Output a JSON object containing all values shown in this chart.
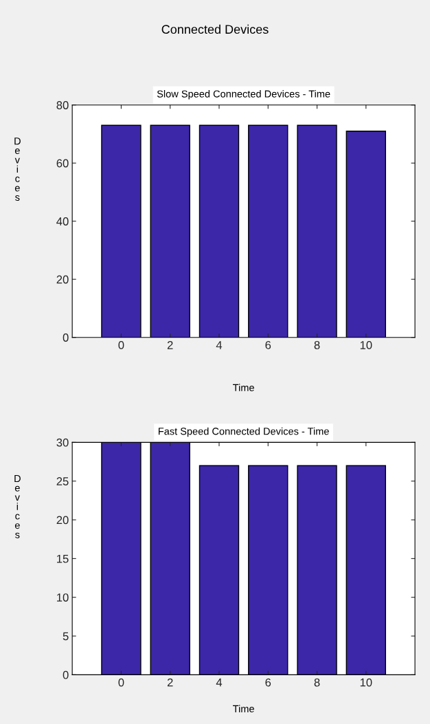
{
  "chart_data": [
    {
      "type": "bar",
      "title": "Slow Speed Connected Devices - Time",
      "xlabel": "Time",
      "ylabel": "Devices",
      "x": [
        0,
        2,
        4,
        6,
        8,
        10
      ],
      "values": [
        73,
        73,
        73,
        73,
        73,
        71
      ],
      "color": "#3c27a8",
      "xlim": [
        -2,
        12
      ],
      "xticks": [
        0,
        2,
        4,
        6,
        8,
        10
      ],
      "ylim": [
        0,
        80
      ],
      "yticks": [
        0,
        20,
        40,
        60,
        80
      ],
      "annotations": [
        "Connected Devices"
      ]
    },
    {
      "type": "bar",
      "title": "Fast Speed Connected Devices - Time",
      "xlabel": "Time",
      "ylabel": "Devices",
      "x": [
        0,
        2,
        4,
        6,
        8,
        10
      ],
      "values": [
        30,
        30,
        27,
        27,
        27,
        27
      ],
      "color": "#3c27a8",
      "xlim": [
        -2,
        12
      ],
      "xticks": [
        0,
        2,
        4,
        6,
        8,
        10
      ],
      "ylim": [
        0,
        30
      ],
      "yticks": [
        0,
        5,
        10,
        15,
        20,
        25,
        30
      ]
    }
  ]
}
